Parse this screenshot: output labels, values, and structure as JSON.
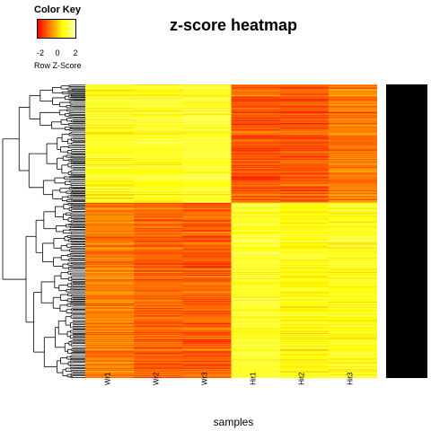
{
  "chart_data": {
    "type": "heatmap",
    "title": "z-score heatmap",
    "xlabel": "samples",
    "columns": [
      "Wr1",
      "Wr2",
      "Wr3",
      "Hit1",
      "Hit2",
      "Hit3"
    ],
    "color_key": {
      "title": "Color Key",
      "label": "Row  Z-Score",
      "ticks": [
        "-2",
        "0",
        "2"
      ],
      "range": [
        -2.5,
        2.5
      ],
      "colors": [
        "#ff0000",
        "#ff8000",
        "#ffff00",
        "#ffffb0"
      ]
    },
    "row_clusters": [
      {
        "rows": 135,
        "column_mean_zscore": [
          1.1,
          1.2,
          1.3,
          -1.4,
          -1.4,
          -0.9
        ]
      },
      {
        "rows": 200,
        "column_mean_zscore": [
          -0.9,
          -1.2,
          -1.3,
          1.3,
          1.0,
          1.1
        ]
      }
    ]
  }
}
